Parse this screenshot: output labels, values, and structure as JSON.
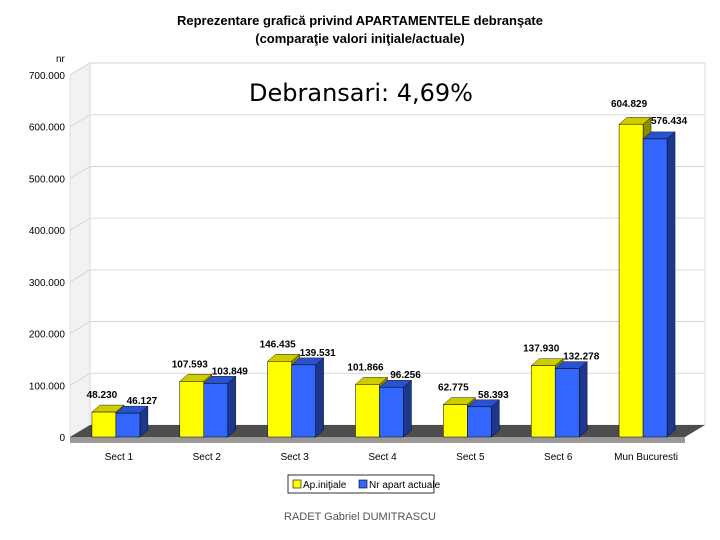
{
  "chart_data": {
    "type": "bar",
    "title": "Reprezentare grafică privind APARTAMENTELE debranşate",
    "subtitle": "(comparaţie valori iniţiale/actuale)",
    "ylabel": "nr",
    "xlabel": "",
    "ylim": [
      0,
      700000
    ],
    "yticks": [
      0,
      100000,
      200000,
      300000,
      400000,
      500000,
      600000,
      700000
    ],
    "ytick_labels": [
      "0",
      "100.000",
      "200.000",
      "300.000",
      "400.000",
      "500.000",
      "600.000",
      "700.000"
    ],
    "categories": [
      "Sect 1",
      "Sect 2",
      "Sect 3",
      "Sect 4",
      "Sect 5",
      "Sect 6",
      "Mun Bucuresti"
    ],
    "series": [
      {
        "name": "Ap.iniţiale",
        "color": "#ffff00",
        "values": [
          48230,
          107593,
          146435,
          101866,
          62775,
          137930,
          604829
        ],
        "labels": [
          "48.230",
          "107.593",
          "146.435",
          "101.866",
          "62.775",
          "137.930",
          "604.829"
        ]
      },
      {
        "name": "Nr apart actuale",
        "color": "#3366ff",
        "values": [
          46127,
          103849,
          139531,
          96256,
          58393,
          132278,
          576434
        ],
        "labels": [
          "46.127",
          "103.849",
          "139.531",
          "96.256",
          "58.393",
          "132.278",
          "576.434"
        ]
      }
    ],
    "grid": true,
    "legend_position": "bottom-center",
    "three_d": true
  },
  "callout": "Debransari: 4,69%",
  "footer": "RADET   Gabriel DUMITRASCU"
}
